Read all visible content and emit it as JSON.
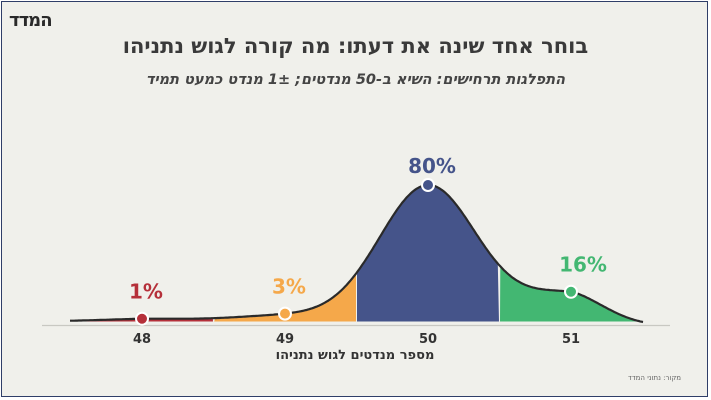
{
  "header": {
    "logo": "המדד",
    "title": "בוחר אחד שינה את דעתו: מה קורה לגוש נתניהו",
    "subtitle": "התפלגות תרחישים: השיא ב-50 מנדטים; 1± מנדט כמעט תמיד",
    "source": "מקור: נתוני המדד"
  },
  "colors": {
    "48": "#b5303a",
    "49": "#f5a84a",
    "50": "#45548a",
    "51": "#43b772",
    "curve": "#2a2a2a",
    "background": "#f0f0eb",
    "border": "#2f3e68"
  },
  "chart_data": {
    "type": "area",
    "xlabel": "מספר מנדטים לגוש נתניהו",
    "categories": [
      "48",
      "49",
      "50",
      "51"
    ],
    "values": [
      1,
      3,
      80,
      16
    ],
    "labels": [
      "1%",
      "3%",
      "80%",
      "16%"
    ],
    "unit": "%"
  }
}
